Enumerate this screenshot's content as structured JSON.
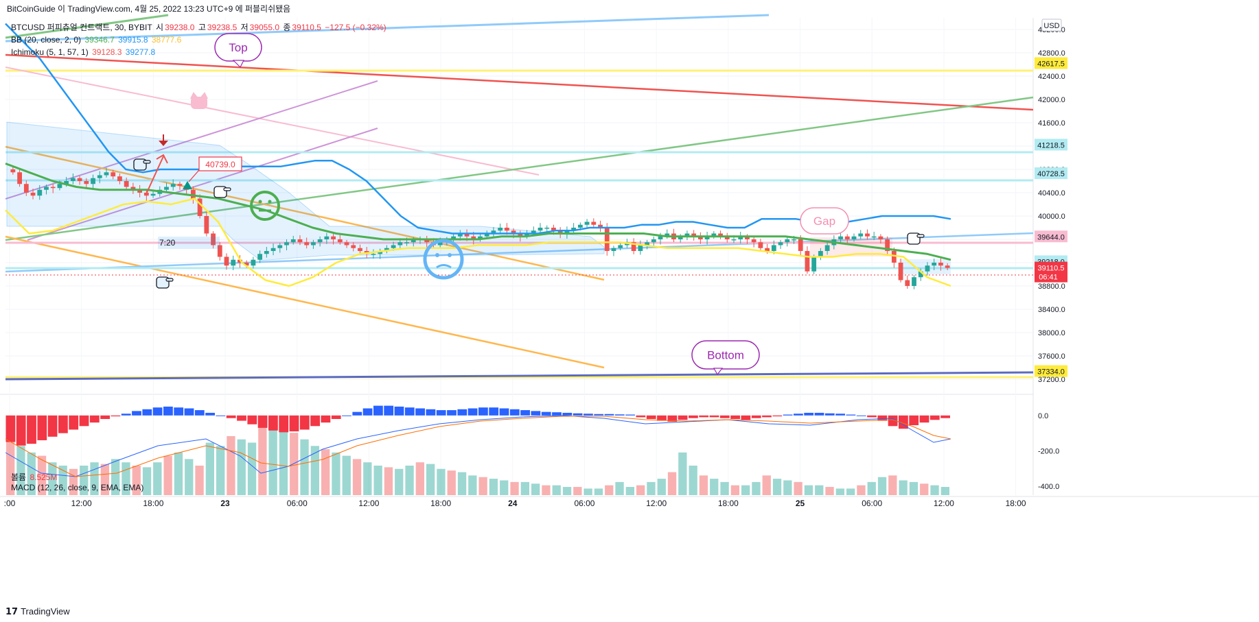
{
  "header": {
    "attribution": "BitCoinGuide 이 TradingView.com, 4월 25, 2022 13:23 UTC+9 에 퍼블리쉬됐음",
    "currency": "USD"
  },
  "legend": {
    "symbol": "BTCUSD 퍼피츄얼 컨트랙트, 30, BYBIT",
    "o_label": "시",
    "o": "39238.0",
    "h_label": "고",
    "h": "39238.5",
    "l_label": "저",
    "l": "39055.0",
    "c_label": "종",
    "c": "39110.5",
    "change": "−127.5 (−0.32%)",
    "bb_label": "BB (20, close, 2, 0)",
    "bb_basis": "39346.7",
    "bb_upper": "39915.8",
    "bb_lower": "38777.6",
    "ichimoku_label": "Ichimoku (5, 1, 57, 1)",
    "ichi_a": "39128.3",
    "ichi_b": "39277.8",
    "volume_label": "볼륨",
    "volume": "8.525M",
    "macd_label": "MACD (12, 26, close, 9, EMA, EMA)"
  },
  "annotations": {
    "top": "Top",
    "bottom": "Bottom",
    "gap": "Gap",
    "price_tag": "40739.0",
    "countdown_label": "7:20"
  },
  "price_badges": [
    {
      "value": "42617.5",
      "color": "#ffeb3b"
    },
    {
      "value": "41218.5",
      "color": "#b2ebf2"
    },
    {
      "value": "40728.5",
      "color": "#b2ebf2"
    },
    {
      "value": "39644.0",
      "color": "#f8bbd0"
    },
    {
      "value": "39218.0",
      "color": "#b2ebf2"
    },
    {
      "value": "37334.0",
      "color": "#ffeb3b"
    }
  ],
  "last_price": {
    "value": "39110.5",
    "countdown": "06:41",
    "color": "#f23645"
  },
  "footer": {
    "brand": "TradingView"
  },
  "colors": {
    "up": "#26a69a",
    "down": "#ef5350",
    "bb_upper": "#2196f3",
    "bb_basis": "#4caf50",
    "bb_lower": "#ffeb3b"
  },
  "chart_data": [
    {
      "type": "candlestick",
      "title": "BTCUSD 퍼피츄얼 컨트랙트, 30, BYBIT",
      "ylim": [
        37000,
        43400
      ],
      "y_ticks": [
        43200,
        42800,
        42400,
        42000,
        41600,
        41200,
        40800,
        40400,
        40000,
        39600,
        39200,
        38800,
        38400,
        38000,
        37600,
        37200
      ],
      "x_ticks": [
        ":00",
        "12:00",
        "18:00",
        "23",
        "06:00",
        "12:00",
        "18:00",
        "24",
        "06:00",
        "12:00",
        "18:00",
        "25",
        "06:00",
        "12:00",
        "18:00"
      ],
      "close_series": [
        40750,
        40550,
        40400,
        40350,
        40450,
        40500,
        40480,
        40550,
        40600,
        40650,
        40600,
        40550,
        40650,
        40700,
        40750,
        40680,
        40600,
        40500,
        40450,
        40400,
        40350,
        40380,
        40450,
        40500,
        40550,
        40520,
        40450,
        40300,
        40000,
        39700,
        39500,
        39300,
        39150,
        39250,
        39200,
        39150,
        39250,
        39350,
        39400,
        39450,
        39500,
        39550,
        39600,
        39550,
        39500,
        39550,
        39600,
        39650,
        39600,
        39550,
        39500,
        39450,
        39400,
        39350,
        39350,
        39400,
        39450,
        39500,
        39550,
        39550,
        39600,
        39600,
        39550,
        39500,
        39550,
        39600,
        39650,
        39700,
        39650,
        39600,
        39650,
        39700,
        39750,
        39800,
        39750,
        39700,
        39650,
        39700,
        39750,
        39800,
        39800,
        39750,
        39700,
        39750,
        39800,
        39850,
        39900,
        39850,
        39800,
        39400,
        39450,
        39500,
        39550,
        39400,
        39500,
        39550,
        39600,
        39650,
        39700,
        39600,
        39650,
        39700,
        39650,
        39600,
        39650,
        39700,
        39650,
        39600,
        39600,
        39650,
        39600,
        39550,
        39450,
        39400,
        39500,
        39550,
        39600,
        39600,
        39400,
        39050,
        39300,
        39400,
        39500,
        39600,
        39650,
        39600,
        39650,
        39700,
        39650,
        39650,
        39600,
        39400,
        39200,
        38900,
        38800,
        38950,
        39050,
        39150,
        39200,
        39150,
        39110
      ],
      "bb_upper_series": [
        43300,
        43000,
        42700,
        42300,
        41900,
        41500,
        41100,
        40800,
        40750,
        40800,
        40800,
        40800,
        40800,
        40850,
        40850,
        40850,
        40850,
        40900,
        40950,
        40950,
        40800,
        40600,
        40300,
        40000,
        39800,
        39750,
        39700,
        39700,
        39700,
        39700,
        39700,
        39700,
        39750,
        39750,
        39800,
        39800,
        39800,
        39850,
        39850,
        39900,
        39900,
        39850,
        39800,
        39800,
        39950,
        39950,
        39950,
        39900,
        39900,
        39900,
        39950,
        40000,
        40000,
        40000,
        40000,
        39950
      ],
      "bb_basis_series": [
        40900,
        40750,
        40600,
        40500,
        40450,
        40450,
        40450,
        40400,
        40350,
        40300,
        40200,
        40100,
        39950,
        39800,
        39700,
        39650,
        39600,
        39600,
        39600,
        39600,
        39600,
        39650,
        39650,
        39700,
        39700,
        39700,
        39700,
        39700,
        39650,
        39650,
        39650,
        39650,
        39650,
        39650,
        39600,
        39550,
        39500,
        39450,
        39400,
        39350,
        39250
      ],
      "bb_lower_series": [
        40100,
        39700,
        39750,
        39900,
        40050,
        40200,
        40250,
        40200,
        40300,
        39900,
        39200,
        38900,
        38800,
        38950,
        39200,
        39350,
        39400,
        39450,
        39450,
        39450,
        39500,
        39500,
        39500,
        39550,
        39550,
        39550,
        39550,
        39500,
        39450,
        39450,
        39450,
        39450,
        39400,
        39350,
        39300,
        39300,
        39350,
        39350,
        39300,
        38950,
        38800
      ]
    },
    {
      "type": "bar",
      "title": "MACD (12, 26, close, 9, EMA, EMA)",
      "ylim": [
        -450,
        100
      ],
      "y_ticks": [
        0,
        -200,
        -400
      ],
      "histogram": [
        -150,
        -170,
        -160,
        -140,
        -120,
        -100,
        -80,
        -60,
        -40,
        -20,
        -5,
        10,
        25,
        35,
        45,
        50,
        45,
        40,
        30,
        15,
        0,
        -15,
        -30,
        -50,
        -70,
        -85,
        -95,
        -90,
        -80,
        -60,
        -40,
        -20,
        0,
        20,
        40,
        55,
        55,
        50,
        45,
        40,
        35,
        30,
        30,
        35,
        40,
        45,
        45,
        40,
        35,
        30,
        25,
        20,
        18,
        15,
        12,
        10,
        8,
        8,
        6,
        5,
        -10,
        -20,
        -30,
        -35,
        -25,
        -15,
        -10,
        -10,
        -15,
        -20,
        -25,
        -15,
        -10,
        -5,
        5,
        10,
        15,
        15,
        12,
        10,
        5,
        0,
        -10,
        -30,
        -60,
        -75,
        -55,
        -40,
        -25,
        -15
      ],
      "volume_bars": [
        180,
        150,
        130,
        120,
        100,
        90,
        80,
        90,
        100,
        95,
        110,
        100,
        90,
        85,
        100,
        120,
        130,
        110,
        90,
        160,
        150,
        180,
        170,
        160,
        210,
        230,
        200,
        190,
        170,
        150,
        140,
        130,
        120,
        110,
        100,
        90,
        85,
        80,
        90,
        100,
        95,
        80,
        75,
        70,
        60,
        55,
        50,
        45,
        40,
        40,
        35,
        30,
        30,
        25,
        25,
        20,
        20,
        30,
        40,
        25,
        30,
        40,
        50,
        70,
        130,
        90,
        60,
        50,
        40,
        30,
        30,
        40,
        60,
        50,
        45,
        40,
        30,
        30,
        25,
        20,
        20,
        30,
        40,
        55,
        60,
        45,
        40,
        35,
        30,
        25
      ]
    }
  ]
}
